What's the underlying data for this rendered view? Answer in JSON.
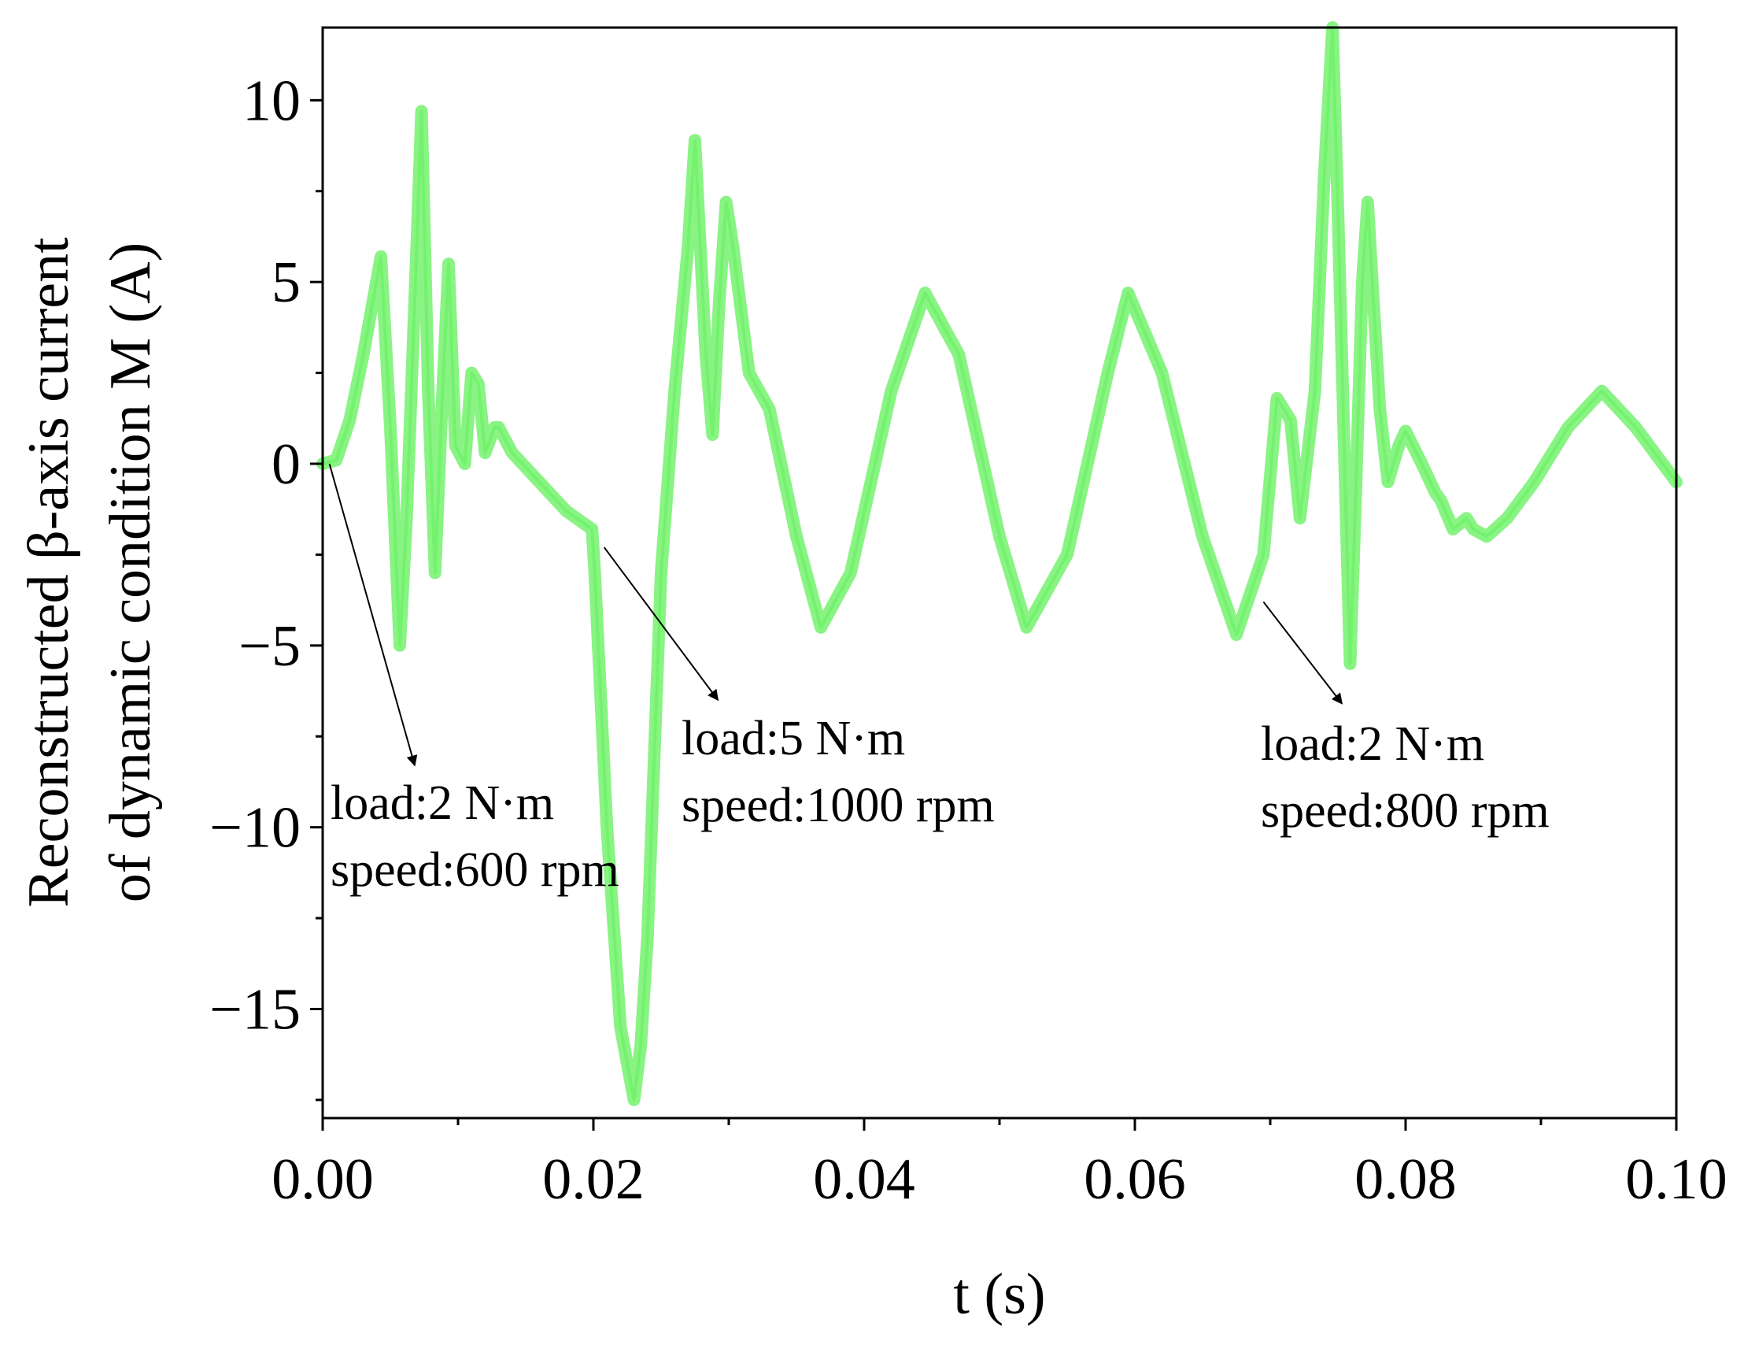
{
  "chart_data": {
    "type": "line",
    "title": "",
    "xlabel": "t (s)",
    "ylabel_line1": "Reconstructed β-axis current",
    "ylabel_line2": "of dynamic condition M (A)",
    "xlim": [
      0.0,
      0.1
    ],
    "ylim": [
      -18,
      12
    ],
    "grid": false,
    "line_color": "#74f26e",
    "x_ticks": [
      0.0,
      0.02,
      0.04,
      0.06,
      0.08,
      0.1
    ],
    "x_tick_labels": [
      "0.00",
      "0.02",
      "0.04",
      "0.06",
      "0.08",
      "0.10"
    ],
    "y_ticks": [
      10,
      5,
      0,
      -5,
      -10,
      -15
    ],
    "y_tick_labels": [
      "10",
      "5",
      "0",
      "−5",
      "−10",
      "−15"
    ],
    "series": [
      {
        "name": "β-axis current",
        "x": [
          0.0,
          0.001,
          0.002,
          0.003,
          0.0043,
          0.005,
          0.0057,
          0.0062,
          0.007,
          0.0073,
          0.0078,
          0.0083,
          0.0088,
          0.0093,
          0.0098,
          0.0105,
          0.011,
          0.0115,
          0.012,
          0.0127,
          0.013,
          0.014,
          0.016,
          0.018,
          0.0199,
          0.0201,
          0.021,
          0.022,
          0.023,
          0.0235,
          0.024,
          0.025,
          0.026,
          0.027,
          0.0275,
          0.0283,
          0.0288,
          0.0293,
          0.0298,
          0.0303,
          0.0315,
          0.033,
          0.035,
          0.0368,
          0.039,
          0.042,
          0.0445,
          0.047,
          0.05,
          0.052,
          0.055,
          0.058,
          0.0595,
          0.062,
          0.065,
          0.0675,
          0.0695,
          0.0705,
          0.0715,
          0.0722,
          0.0733,
          0.074,
          0.0746,
          0.075,
          0.0755,
          0.0759,
          0.0763,
          0.0768,
          0.0772,
          0.0777,
          0.0781,
          0.0787,
          0.0795,
          0.08,
          0.0812,
          0.0822,
          0.0826,
          0.0835,
          0.0845,
          0.085,
          0.086,
          0.0875,
          0.0895,
          0.092,
          0.0945,
          0.097,
          0.1
        ],
        "values": [
          0.0,
          0.1,
          1.2,
          3.0,
          5.7,
          1.0,
          -5.0,
          -1.5,
          6.5,
          9.7,
          2.0,
          -3.0,
          1.5,
          5.5,
          0.5,
          0.0,
          2.5,
          2.2,
          0.3,
          1.0,
          1.0,
          0.3,
          -0.5,
          -1.3,
          -1.8,
          -3.0,
          -10.0,
          -15.5,
          -17.5,
          -16.0,
          -13.0,
          -3.0,
          2.0,
          6.0,
          8.9,
          3.0,
          0.8,
          4.5,
          7.2,
          6.0,
          2.5,
          1.5,
          -2.0,
          -4.5,
          -3.0,
          2.0,
          4.7,
          3.0,
          -2.0,
          -4.5,
          -2.5,
          2.5,
          4.7,
          2.5,
          -2.0,
          -4.7,
          -2.5,
          1.8,
          1.2,
          -1.5,
          2.0,
          8.0,
          12.0,
          7.0,
          0.0,
          -5.5,
          -1.0,
          5.0,
          7.2,
          4.0,
          1.5,
          -0.5,
          0.5,
          0.9,
          0.0,
          -0.8,
          -1.0,
          -1.8,
          -1.5,
          -1.8,
          -2.0,
          -1.5,
          -0.5,
          1.0,
          2.0,
          1.0,
          -0.5
        ]
      }
    ],
    "annotations": [
      {
        "line1": "load:2 N·m",
        "line2": "speed:600 rpm",
        "arrow_from": [
          0.0005,
          0.0
        ],
        "arrow_to": [
          0.0068,
          -8.3
        ]
      },
      {
        "line1": "load:5 N·m",
        "line2": "speed:1000 rpm",
        "arrow_from": [
          0.0208,
          -2.3
        ],
        "arrow_to": [
          0.0292,
          -6.5
        ]
      },
      {
        "line1": "load:2 N·m",
        "line2": "speed:800 rpm",
        "arrow_from": [
          0.0695,
          -3.8
        ],
        "arrow_to": [
          0.0753,
          -6.6
        ]
      }
    ]
  }
}
